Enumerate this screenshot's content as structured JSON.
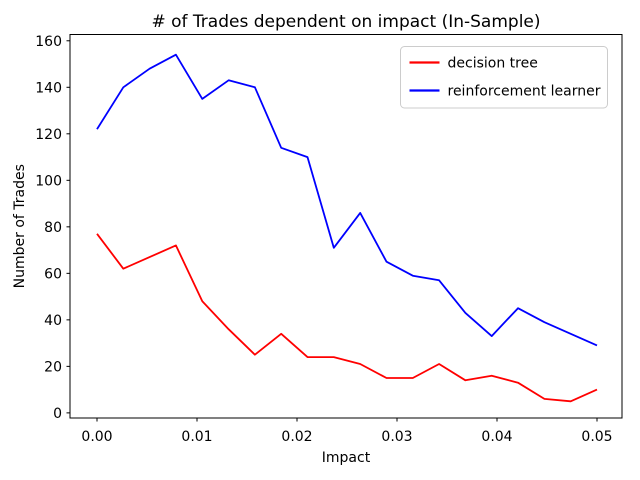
{
  "chart_data": {
    "type": "line",
    "title": "# of Trades dependent on impact (In-Sample)",
    "xlabel": "Impact",
    "ylabel": "Number of Trades",
    "grid": false,
    "legend_position": "upper right",
    "background_color": "#ffffff",
    "spine_color": "#000000",
    "legend_edge_color": "#cccccc",
    "xlim": [
      -0.0027,
      0.0525
    ],
    "ylim": [
      -2.2,
      162.7
    ],
    "x_tick_labels": [
      "0.00",
      "0.01",
      "0.02",
      "0.03",
      "0.04",
      "0.05"
    ],
    "x_tick_values": [
      0.0,
      0.01,
      0.02,
      0.03,
      0.04,
      0.05
    ],
    "y_tick_labels": [
      "0",
      "20",
      "40",
      "60",
      "80",
      "100",
      "120",
      "140",
      "160"
    ],
    "y_tick_values": [
      0,
      20,
      40,
      60,
      80,
      100,
      120,
      140,
      160
    ],
    "x": [
      0.0,
      0.002632,
      0.005263,
      0.007895,
      0.010526,
      0.013158,
      0.015789,
      0.018421,
      0.021053,
      0.023684,
      0.026316,
      0.028947,
      0.031579,
      0.034211,
      0.036842,
      0.039474,
      0.042105,
      0.044737,
      0.047368,
      0.05
    ],
    "series": [
      {
        "name": "decision tree",
        "color": "#ff0000",
        "values": [
          77,
          62,
          67,
          72,
          48,
          36,
          25,
          34,
          24,
          24,
          21,
          15,
          15,
          21,
          14,
          16,
          13,
          6,
          5,
          10
        ]
      },
      {
        "name": "reinforcement learner",
        "color": "#0000ff",
        "values": [
          122,
          140,
          148,
          154,
          135,
          143,
          140,
          114,
          110,
          71,
          86,
          65,
          59,
          57,
          43,
          33,
          45,
          39,
          34,
          29
        ]
      }
    ]
  }
}
